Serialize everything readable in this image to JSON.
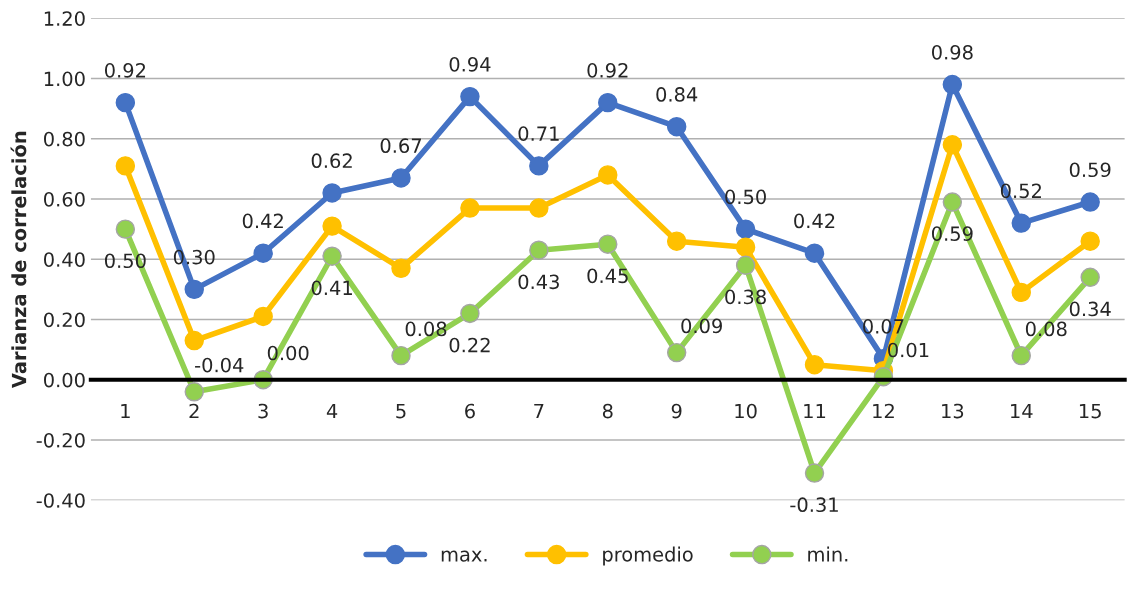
{
  "chart_data": {
    "type": "line",
    "ylabel": "Varianza de correlación",
    "categories": [
      "1",
      "2",
      "3",
      "4",
      "5",
      "6",
      "7",
      "8",
      "9",
      "10",
      "11",
      "12",
      "13",
      "14",
      "15"
    ],
    "series": [
      {
        "name": "max.",
        "color": "#4472c4",
        "values": [
          0.92,
          0.3,
          0.42,
          0.62,
          0.67,
          0.94,
          0.71,
          0.92,
          0.84,
          0.5,
          0.42,
          0.07,
          0.98,
          0.52,
          0.59
        ],
        "value_labels": [
          "0.92",
          "0.30",
          "0.42",
          "0.62",
          "0.67",
          "0.94",
          "0.71",
          "0.92",
          "0.84",
          "0.50",
          "0.42",
          "0.07",
          "0.98",
          "0.52",
          "0.59"
        ]
      },
      {
        "name": "promedio",
        "color": "#ffc000",
        "values": [
          0.71,
          0.13,
          0.21,
          0.51,
          0.37,
          0.57,
          0.57,
          0.68,
          0.46,
          0.44,
          0.05,
          0.03,
          0.78,
          0.29,
          0.46
        ]
      },
      {
        "name": "min.",
        "color": "#92d050",
        "values": [
          0.5,
          -0.04,
          0.0,
          0.41,
          0.08,
          0.22,
          0.43,
          0.45,
          0.09,
          0.38,
          -0.31,
          0.01,
          0.59,
          0.08,
          0.34
        ],
        "value_labels": [
          "0.50",
          "-0.04",
          "0.00",
          "0.41",
          "0.08",
          "0.22",
          "0.43",
          "0.45",
          "0.09",
          "0.38",
          "-0.31",
          "0.01",
          "0.59",
          "0.08",
          "0.34"
        ]
      }
    ],
    "ylim": [
      -0.4,
      1.2
    ],
    "yticks": [
      {
        "value": -0.4,
        "label": "-0.40"
      },
      {
        "value": -0.2,
        "label": "-0.20"
      },
      {
        "value": 0,
        "label": "0.00"
      },
      {
        "value": 0.2,
        "label": "0.20"
      },
      {
        "value": 0.4,
        "label": "0.40"
      },
      {
        "value": 0.6,
        "label": "0.60"
      },
      {
        "value": 0.8,
        "label": "0.80"
      },
      {
        "value": 1.0,
        "label": "1.00"
      },
      {
        "value": 1.2,
        "label": "1.20"
      }
    ],
    "grid": "y",
    "legend": "bottom",
    "marker": "circle",
    "line_style": "solid"
  }
}
